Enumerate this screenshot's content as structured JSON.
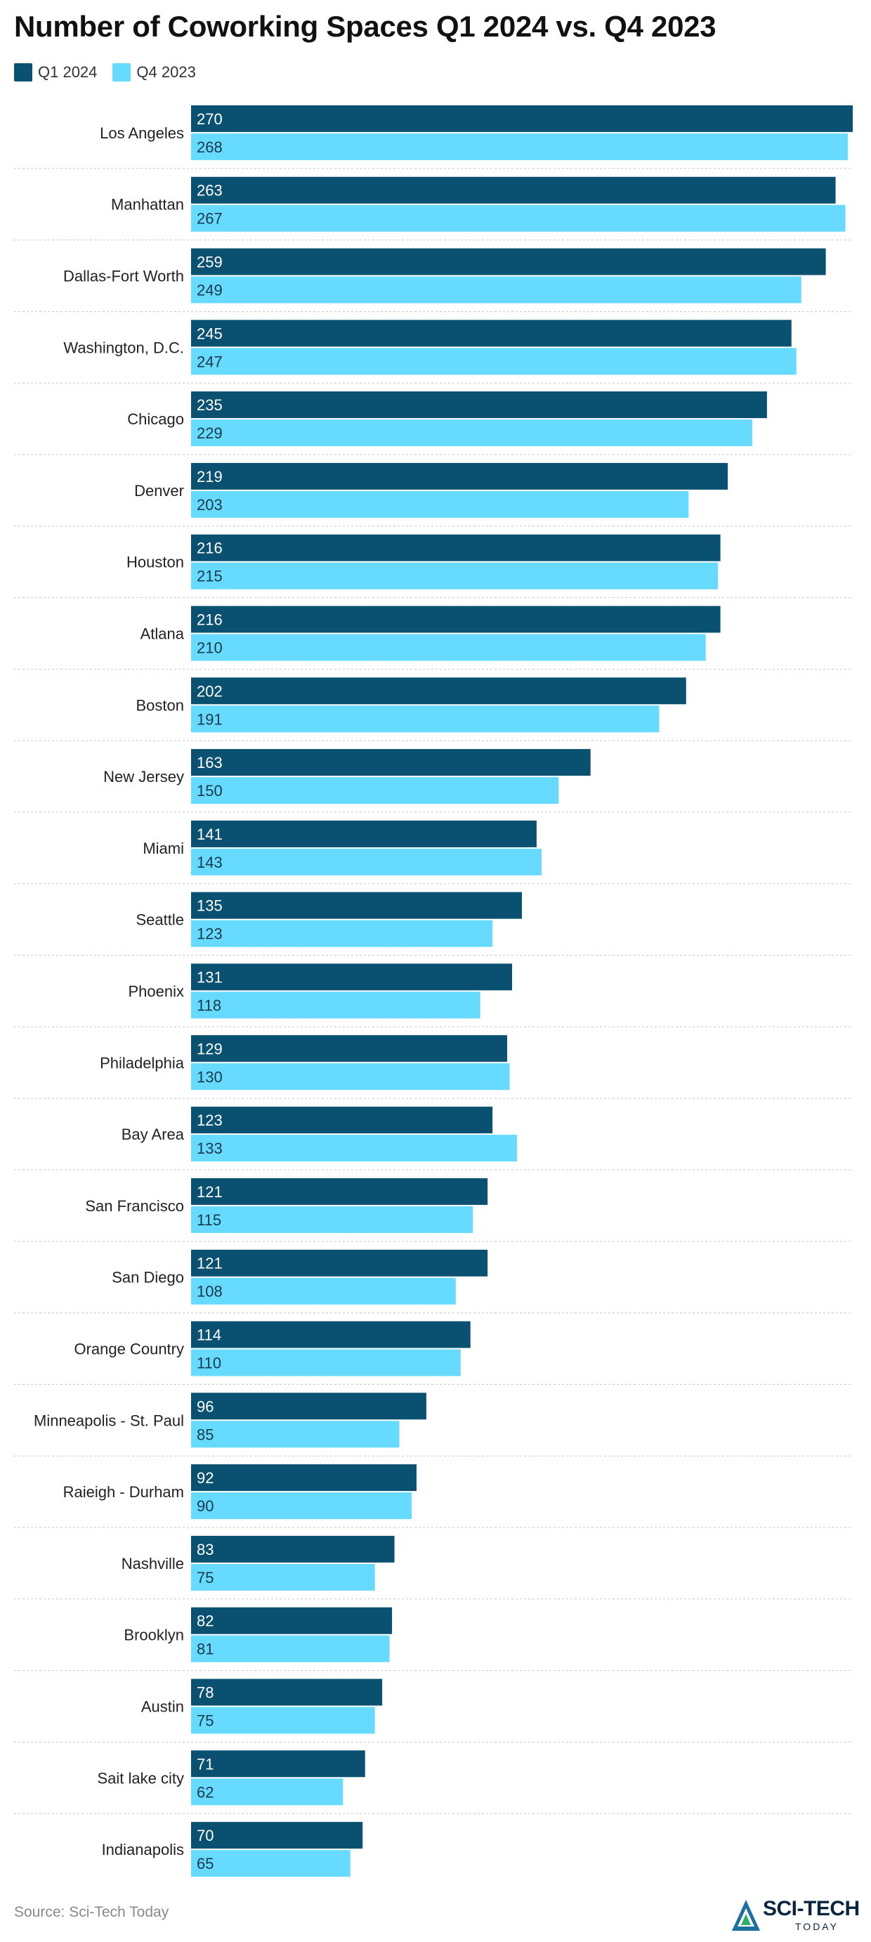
{
  "chart_data": {
    "type": "bar",
    "orientation": "horizontal",
    "title": "Number of Coworking Spaces Q1 2024 vs. Q4 2023",
    "categories": [
      "Los Angeles",
      "Manhattan",
      "Dallas-Fort Worth",
      "Washington, D.C.",
      "Chicago",
      "Denver",
      "Houston",
      "Atlana",
      "Boston",
      "New Jersey",
      "Miami",
      "Seattle",
      "Phoenix",
      "Philadelphia",
      "Bay Area",
      "San Francisco",
      "San Diego",
      "Orange Country",
      "Minneapolis - St. Paul",
      "Raieigh - Durham",
      "Nashville",
      "Brooklyn",
      "Austin",
      "Sait lake city",
      "Indianapolis"
    ],
    "series": [
      {
        "name": "Q1 2024",
        "color": "#0a5070",
        "values": [
          270,
          263,
          259,
          245,
          235,
          219,
          216,
          216,
          202,
          163,
          141,
          135,
          131,
          129,
          123,
          121,
          121,
          114,
          96,
          92,
          83,
          82,
          78,
          71,
          70
        ]
      },
      {
        "name": "Q4 2023",
        "color": "#66daff",
        "values": [
          268,
          267,
          249,
          247,
          229,
          203,
          215,
          210,
          191,
          150,
          143,
          123,
          118,
          130,
          133,
          115,
          108,
          110,
          85,
          90,
          75,
          81,
          75,
          62,
          65
        ]
      }
    ],
    "xlim": [
      0,
      270
    ],
    "grid": false,
    "legend_position": "top-left",
    "data_labels": "inside-start"
  },
  "source": "Source: Sci-Tech Today",
  "logo": {
    "text": "SCI-TECH",
    "sub": "TODAY"
  }
}
